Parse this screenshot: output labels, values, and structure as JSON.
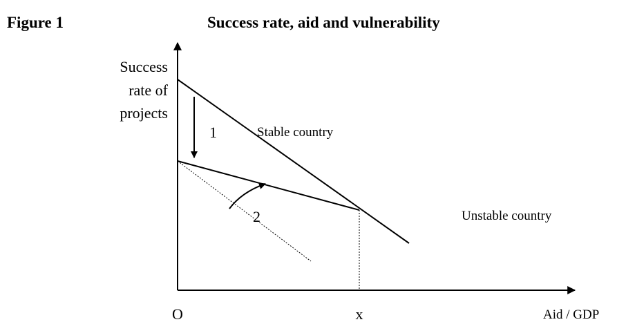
{
  "header": {
    "figure": "Figure 1",
    "title": "Success rate, aid and vulnerability"
  },
  "axes": {
    "y_label": [
      "Success",
      "rate of",
      "projects"
    ],
    "x_label": "Aid / GDP",
    "origin": "O",
    "x_mark": "x"
  },
  "curves": {
    "stable": "Stable country",
    "unstable": "Unstable country"
  },
  "annotations": [
    "1",
    "2"
  ]
}
